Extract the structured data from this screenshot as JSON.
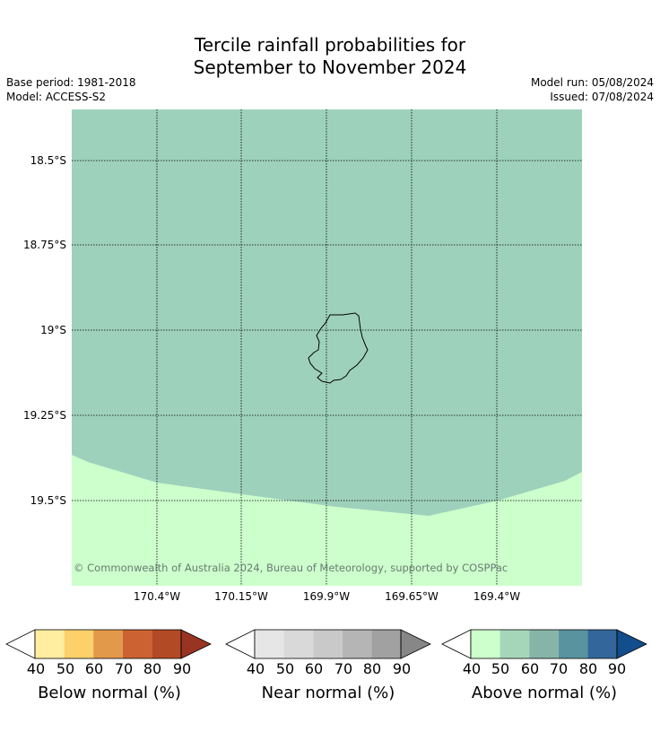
{
  "title": {
    "line1": "Tercile rainfall probabilities for",
    "line2": "September to November 2024"
  },
  "meta": {
    "base_period": "Base period: 1981-2018",
    "model": "Model: ACCESS-S2",
    "model_run": "Model run: 05/08/2024",
    "issued": "Issued: 07/08/2024"
  },
  "map": {
    "copyright": "© Commonwealth of Australia 2024, Bureau of Meteorology, supported by COSPPac",
    "lat_labels": [
      "18.5°S",
      "18.75°S",
      "19°S",
      "19.25°S",
      "19.5°S"
    ],
    "lon_labels": [
      "170.4°W",
      "170.15°W",
      "169.9°W",
      "169.65°W",
      "169.4°W"
    ],
    "colors": {
      "above_50_60": "#9ed1bb",
      "above_40_50": "#ccffcc",
      "coastline": "#000000",
      "gridline": "#000000"
    },
    "shown_categories": [
      "Above normal 50-60%",
      "Above normal 40-50%"
    ]
  },
  "colorbars": [
    {
      "name": "below",
      "title": "Below normal (%)",
      "ticks": [
        "40",
        "50",
        "60",
        "70",
        "80",
        "90"
      ],
      "colors": [
        "#ffeda0",
        "#fed06b",
        "#e3994a",
        "#cc6232",
        "#b34a26",
        "#993322"
      ]
    },
    {
      "name": "near",
      "title": "Near normal (%)",
      "ticks": [
        "40",
        "50",
        "60",
        "70",
        "80",
        "90"
      ],
      "colors": [
        "#e6e6e6",
        "#d9d9d9",
        "#c9c9c9",
        "#b5b5b5",
        "#a1a1a1",
        "#878787"
      ]
    },
    {
      "name": "above",
      "title": "Above normal (%)",
      "ticks": [
        "40",
        "50",
        "60",
        "70",
        "80",
        "90"
      ],
      "colors": [
        "#ccffcc",
        "#a5d6ba",
        "#86b5a8",
        "#5a93a0",
        "#33669a",
        "#124e8c"
      ]
    }
  ]
}
